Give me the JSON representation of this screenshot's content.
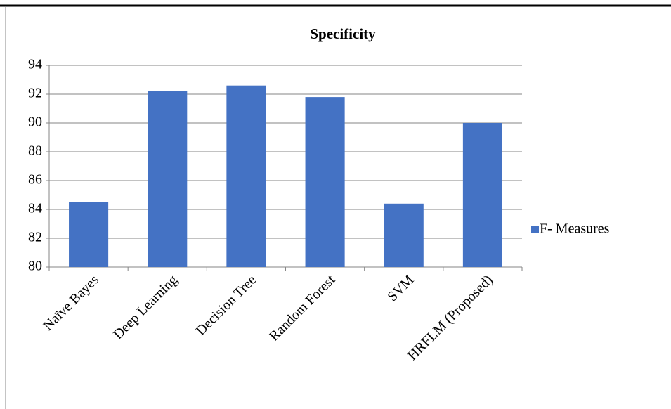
{
  "chart_data": {
    "type": "bar",
    "title": "Specificity",
    "categories": [
      "Naïve Bayes",
      "Deep Learning",
      "Decision Tree",
      "Random Forest",
      "SVM",
      "HRFLM (Proposed)"
    ],
    "series": [
      {
        "name": "F- Measures",
        "color": "#4472c4",
        "values": [
          84.5,
          92.2,
          92.6,
          91.8,
          84.4,
          90.0
        ]
      }
    ],
    "ylim": [
      80,
      94
    ],
    "yticks": [
      80,
      82,
      84,
      86,
      88,
      90,
      92,
      94
    ],
    "grid": true,
    "legend": "right"
  }
}
